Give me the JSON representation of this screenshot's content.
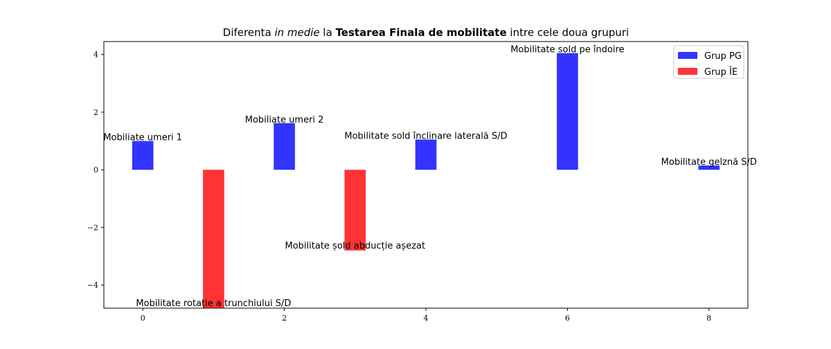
{
  "chart_data": {
    "type": "bar",
    "title": {
      "prefix": "Diferenta ",
      "italic": "in medie",
      "mid": " la ",
      "bold": "Testarea Finala de mobilitate",
      "suffix": " intre cele doua grupuri"
    },
    "xlabel": "",
    "ylabel": "",
    "xlim": [
      -0.55,
      8.55
    ],
    "ylim": [
      -4.8,
      4.45
    ],
    "xticks": [
      0,
      2,
      4,
      6,
      8
    ],
    "yticks": [
      -4,
      -2,
      0,
      2,
      4
    ],
    "ytick_labels": [
      "−4",
      "−2",
      "0",
      "2",
      "4"
    ],
    "bar_width": 0.3,
    "grid": false,
    "legend_position": "top-right",
    "series": [
      {
        "name": "Grup PG",
        "color": "#3333ff",
        "points": [
          {
            "x": 0,
            "value": 1.0,
            "label": "Mobiliate umeri 1"
          },
          {
            "x": 2,
            "value": 1.62,
            "label": "Mobiliate umeri 2"
          },
          {
            "x": 4,
            "value": 1.05,
            "label": "Mobilitate sold înclinare laterală S/D"
          },
          {
            "x": 6,
            "value": 4.05,
            "label": "Mobilitate sold pe îndoire"
          },
          {
            "x": 8,
            "value": 0.15,
            "label": "Mobilitate gelznă S/D"
          }
        ]
      },
      {
        "name": "Grup ÎE",
        "color": "#ff3333",
        "points": [
          {
            "x": 1,
            "value": -4.8,
            "label": "Mobilitate rotație a trunchiului S/D"
          },
          {
            "x": 3,
            "value": -2.8,
            "label": "Mobilitate șold abducție așezat"
          }
        ]
      }
    ]
  }
}
